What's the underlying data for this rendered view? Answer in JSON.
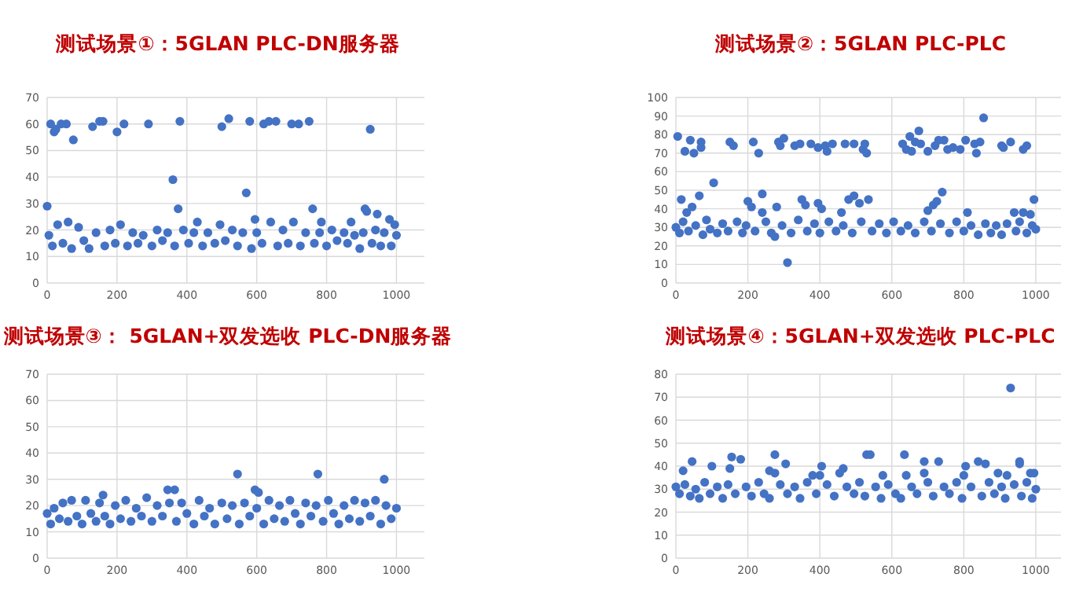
{
  "chart_data": [
    {
      "type": "scatter",
      "title": "测试场景①：5GLAN PLC-DN服务器",
      "color": "#4472c4",
      "marker": "circle",
      "grid": true,
      "xlim": [
        0,
        1080
      ],
      "xticks": [
        0,
        200,
        400,
        600,
        800,
        1000
      ],
      "ylim": [
        0,
        70
      ],
      "yticks": [
        0,
        10,
        20,
        30,
        40,
        50,
        60,
        70
      ],
      "x": [
        0,
        10,
        20,
        25,
        40,
        55,
        75,
        130,
        150,
        160,
        200,
        220,
        290,
        360,
        375,
        380,
        500,
        520,
        570,
        580,
        595,
        620,
        635,
        655,
        700,
        720,
        750,
        760,
        785,
        870,
        910,
        915,
        925,
        945,
        980,
        995,
        5,
        15,
        30,
        45,
        60,
        70,
        90,
        105,
        120,
        140,
        165,
        180,
        195,
        210,
        230,
        245,
        260,
        275,
        300,
        315,
        330,
        345,
        365,
        390,
        405,
        420,
        430,
        445,
        460,
        480,
        495,
        510,
        530,
        545,
        560,
        585,
        600,
        615,
        640,
        660,
        675,
        690,
        705,
        725,
        740,
        765,
        780,
        800,
        815,
        830,
        850,
        860,
        880,
        895,
        905,
        930,
        940,
        955,
        965,
        985,
        1000
      ],
      "values": [
        29,
        60,
        57,
        58,
        60,
        60,
        54,
        59,
        61,
        61,
        57,
        60,
        60,
        39,
        28,
        61,
        59,
        62,
        34,
        61,
        24,
        60,
        61,
        61,
        60,
        60,
        61,
        28,
        23,
        23,
        28,
        27,
        58,
        26,
        24,
        22,
        18,
        14,
        22,
        15,
        23,
        13,
        21,
        16,
        13,
        19,
        14,
        20,
        15,
        22,
        14,
        19,
        15,
        18,
        14,
        20,
        16,
        19,
        14,
        20,
        15,
        19,
        23,
        14,
        19,
        15,
        22,
        16,
        20,
        14,
        19,
        13,
        19,
        15,
        23,
        14,
        20,
        15,
        23,
        14,
        19,
        15,
        19,
        14,
        20,
        16,
        19,
        15,
        18,
        13,
        19,
        15,
        20,
        14,
        19,
        14,
        18
      ]
    },
    {
      "type": "scatter",
      "title": "测试场景②：5GLAN PLC-PLC",
      "color": "#4472c4",
      "marker": "circle",
      "grid": true,
      "xlim": [
        0,
        1070
      ],
      "xticks": [
        0,
        200,
        400,
        600,
        800,
        1000
      ],
      "ylim": [
        0,
        100
      ],
      "yticks": [
        0,
        10,
        20,
        30,
        40,
        50,
        60,
        70,
        80,
        90,
        100
      ],
      "x": [
        5,
        15,
        25,
        30,
        40,
        45,
        50,
        65,
        70,
        70,
        105,
        150,
        160,
        200,
        210,
        215,
        230,
        240,
        240,
        280,
        285,
        290,
        300,
        310,
        330,
        345,
        350,
        360,
        375,
        395,
        395,
        405,
        415,
        420,
        435,
        460,
        470,
        480,
        495,
        495,
        510,
        520,
        525,
        530,
        535,
        630,
        640,
        650,
        655,
        665,
        675,
        680,
        700,
        700,
        715,
        720,
        725,
        730,
        740,
        745,
        755,
        770,
        790,
        805,
        810,
        830,
        835,
        845,
        855,
        905,
        910,
        930,
        940,
        965,
        965,
        975,
        985,
        995,
        0,
        10,
        20,
        35,
        55,
        75,
        85,
        95,
        115,
        130,
        145,
        170,
        185,
        195,
        220,
        250,
        265,
        275,
        295,
        320,
        340,
        365,
        385,
        400,
        425,
        445,
        465,
        490,
        515,
        545,
        565,
        585,
        605,
        625,
        645,
        665,
        690,
        710,
        735,
        760,
        780,
        800,
        820,
        840,
        860,
        875,
        890,
        905,
        920,
        945,
        955,
        975,
        990,
        1000
      ],
      "values": [
        79,
        45,
        71,
        38,
        77,
        41,
        70,
        47,
        76,
        73,
        54,
        76,
        74,
        44,
        41,
        76,
        70,
        48,
        38,
        41,
        76,
        74,
        78,
        11,
        74,
        75,
        45,
        42,
        75,
        73,
        43,
        40,
        74,
        71,
        75,
        38,
        75,
        45,
        75,
        47,
        43,
        72,
        75,
        70,
        45,
        75,
        72,
        79,
        71,
        76,
        82,
        75,
        71,
        39,
        42,
        74,
        44,
        77,
        49,
        77,
        72,
        73,
        72,
        77,
        38,
        75,
        70,
        76,
        89,
        74,
        73,
        76,
        38,
        38,
        72,
        74,
        37,
        45,
        30,
        27,
        33,
        28,
        31,
        26,
        34,
        29,
        27,
        32,
        28,
        33,
        27,
        31,
        28,
        33,
        27,
        25,
        31,
        27,
        34,
        28,
        32,
        27,
        33,
        28,
        31,
        27,
        33,
        28,
        32,
        27,
        33,
        28,
        31,
        27,
        33,
        28,
        32,
        27,
        33,
        28,
        31,
        26,
        32,
        27,
        31,
        26,
        32,
        28,
        33,
        27,
        31,
        29
      ]
    },
    {
      "type": "scatter",
      "title": "测试场景③： 5GLAN+双发选收 PLC-DN服务器",
      "color": "#4472c4",
      "marker": "circle",
      "grid": true,
      "xlim": [
        0,
        1080
      ],
      "xticks": [
        0,
        200,
        400,
        600,
        800,
        1000
      ],
      "ylim": [
        0,
        70
      ],
      "yticks": [
        0,
        10,
        20,
        30,
        40,
        50,
        60,
        70
      ],
      "x": [
        160,
        345,
        365,
        545,
        595,
        605,
        775,
        965,
        0,
        10,
        20,
        35,
        45,
        60,
        70,
        85,
        100,
        110,
        125,
        140,
        150,
        165,
        180,
        195,
        210,
        225,
        240,
        255,
        270,
        285,
        300,
        315,
        330,
        350,
        370,
        385,
        400,
        420,
        435,
        450,
        465,
        480,
        500,
        515,
        530,
        550,
        565,
        580,
        600,
        620,
        635,
        650,
        665,
        680,
        695,
        710,
        725,
        740,
        755,
        770,
        790,
        805,
        820,
        835,
        850,
        865,
        880,
        895,
        910,
        925,
        940,
        955,
        970,
        985,
        1000
      ],
      "values": [
        24,
        26,
        26,
        32,
        26,
        25,
        32,
        30,
        17,
        13,
        19,
        15,
        21,
        14,
        22,
        16,
        13,
        22,
        17,
        14,
        21,
        16,
        13,
        20,
        15,
        22,
        14,
        19,
        16,
        23,
        14,
        20,
        16,
        21,
        14,
        21,
        17,
        13,
        22,
        16,
        19,
        13,
        21,
        15,
        20,
        13,
        21,
        16,
        19,
        13,
        22,
        15,
        20,
        14,
        22,
        17,
        13,
        21,
        16,
        20,
        14,
        22,
        17,
        13,
        20,
        15,
        22,
        14,
        21,
        16,
        22,
        13,
        20,
        15,
        19
      ]
    },
    {
      "type": "scatter",
      "title": "测试场景④：5GLAN+双发选收 PLC-PLC",
      "color": "#4472c4",
      "marker": "circle",
      "grid": true,
      "xlim": [
        0,
        1070
      ],
      "xticks": [
        0,
        200,
        400,
        600,
        800,
        1000
      ],
      "ylim": [
        0,
        80
      ],
      "yticks": [
        0,
        10,
        20,
        30,
        40,
        50,
        60,
        70,
        80
      ],
      "x": [
        20,
        45,
        100,
        150,
        155,
        180,
        260,
        275,
        275,
        305,
        380,
        400,
        405,
        455,
        465,
        530,
        540,
        575,
        635,
        640,
        690,
        690,
        730,
        800,
        805,
        840,
        860,
        895,
        920,
        930,
        955,
        955,
        985,
        995,
        0,
        10,
        25,
        40,
        55,
        65,
        80,
        95,
        115,
        130,
        145,
        165,
        195,
        210,
        230,
        245,
        260,
        290,
        310,
        330,
        345,
        365,
        390,
        420,
        440,
        475,
        495,
        510,
        525,
        555,
        570,
        590,
        610,
        625,
        655,
        670,
        700,
        715,
        745,
        760,
        780,
        795,
        820,
        850,
        870,
        885,
        905,
        915,
        940,
        960,
        975,
        990,
        1000
      ],
      "values": [
        38,
        42,
        40,
        39,
        44,
        43,
        38,
        45,
        37,
        41,
        36,
        36,
        40,
        37,
        39,
        45,
        45,
        36,
        45,
        36,
        42,
        37,
        42,
        36,
        40,
        42,
        41,
        37,
        36,
        74,
        41,
        42,
        37,
        37,
        31,
        28,
        32,
        27,
        30,
        26,
        33,
        28,
        31,
        26,
        32,
        28,
        31,
        27,
        33,
        28,
        26,
        32,
        28,
        31,
        26,
        33,
        28,
        32,
        27,
        31,
        28,
        33,
        27,
        31,
        26,
        32,
        28,
        26,
        31,
        28,
        33,
        27,
        31,
        28,
        33,
        26,
        31,
        27,
        33,
        28,
        31,
        26,
        32,
        27,
        33,
        26,
        30
      ]
    }
  ]
}
